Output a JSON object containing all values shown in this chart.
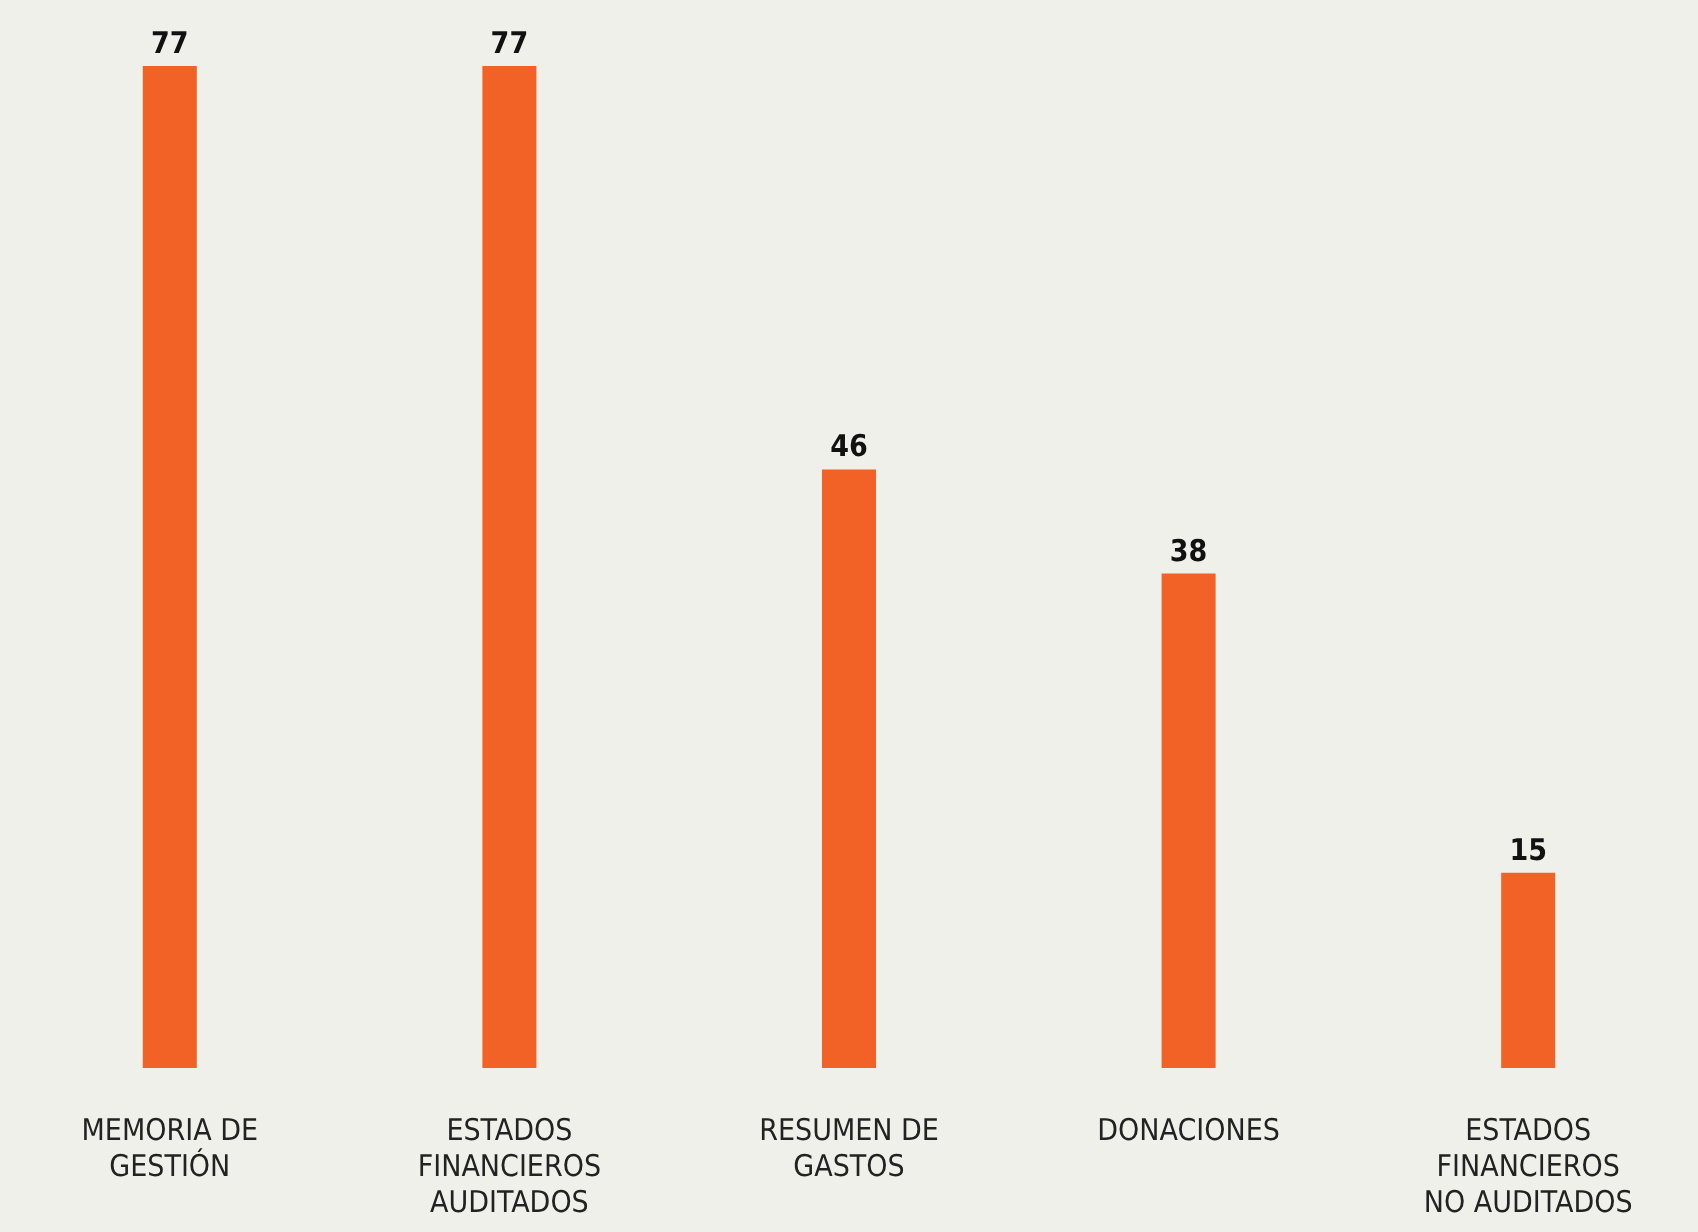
{
  "chart_data": {
    "type": "bar",
    "categories": [
      "MEMORIA DE\nGESTIÓN",
      "ESTADOS\nFINANCIEROS\nAUDITADOS",
      "RESUMEN DE\nGASTOS",
      "DONACIONES",
      "ESTADOS\nFINANCIEROS\nNO AUDITADOS"
    ],
    "values": [
      77,
      77,
      46,
      38,
      15
    ],
    "color": "#f26125",
    "data_labels": true
  }
}
